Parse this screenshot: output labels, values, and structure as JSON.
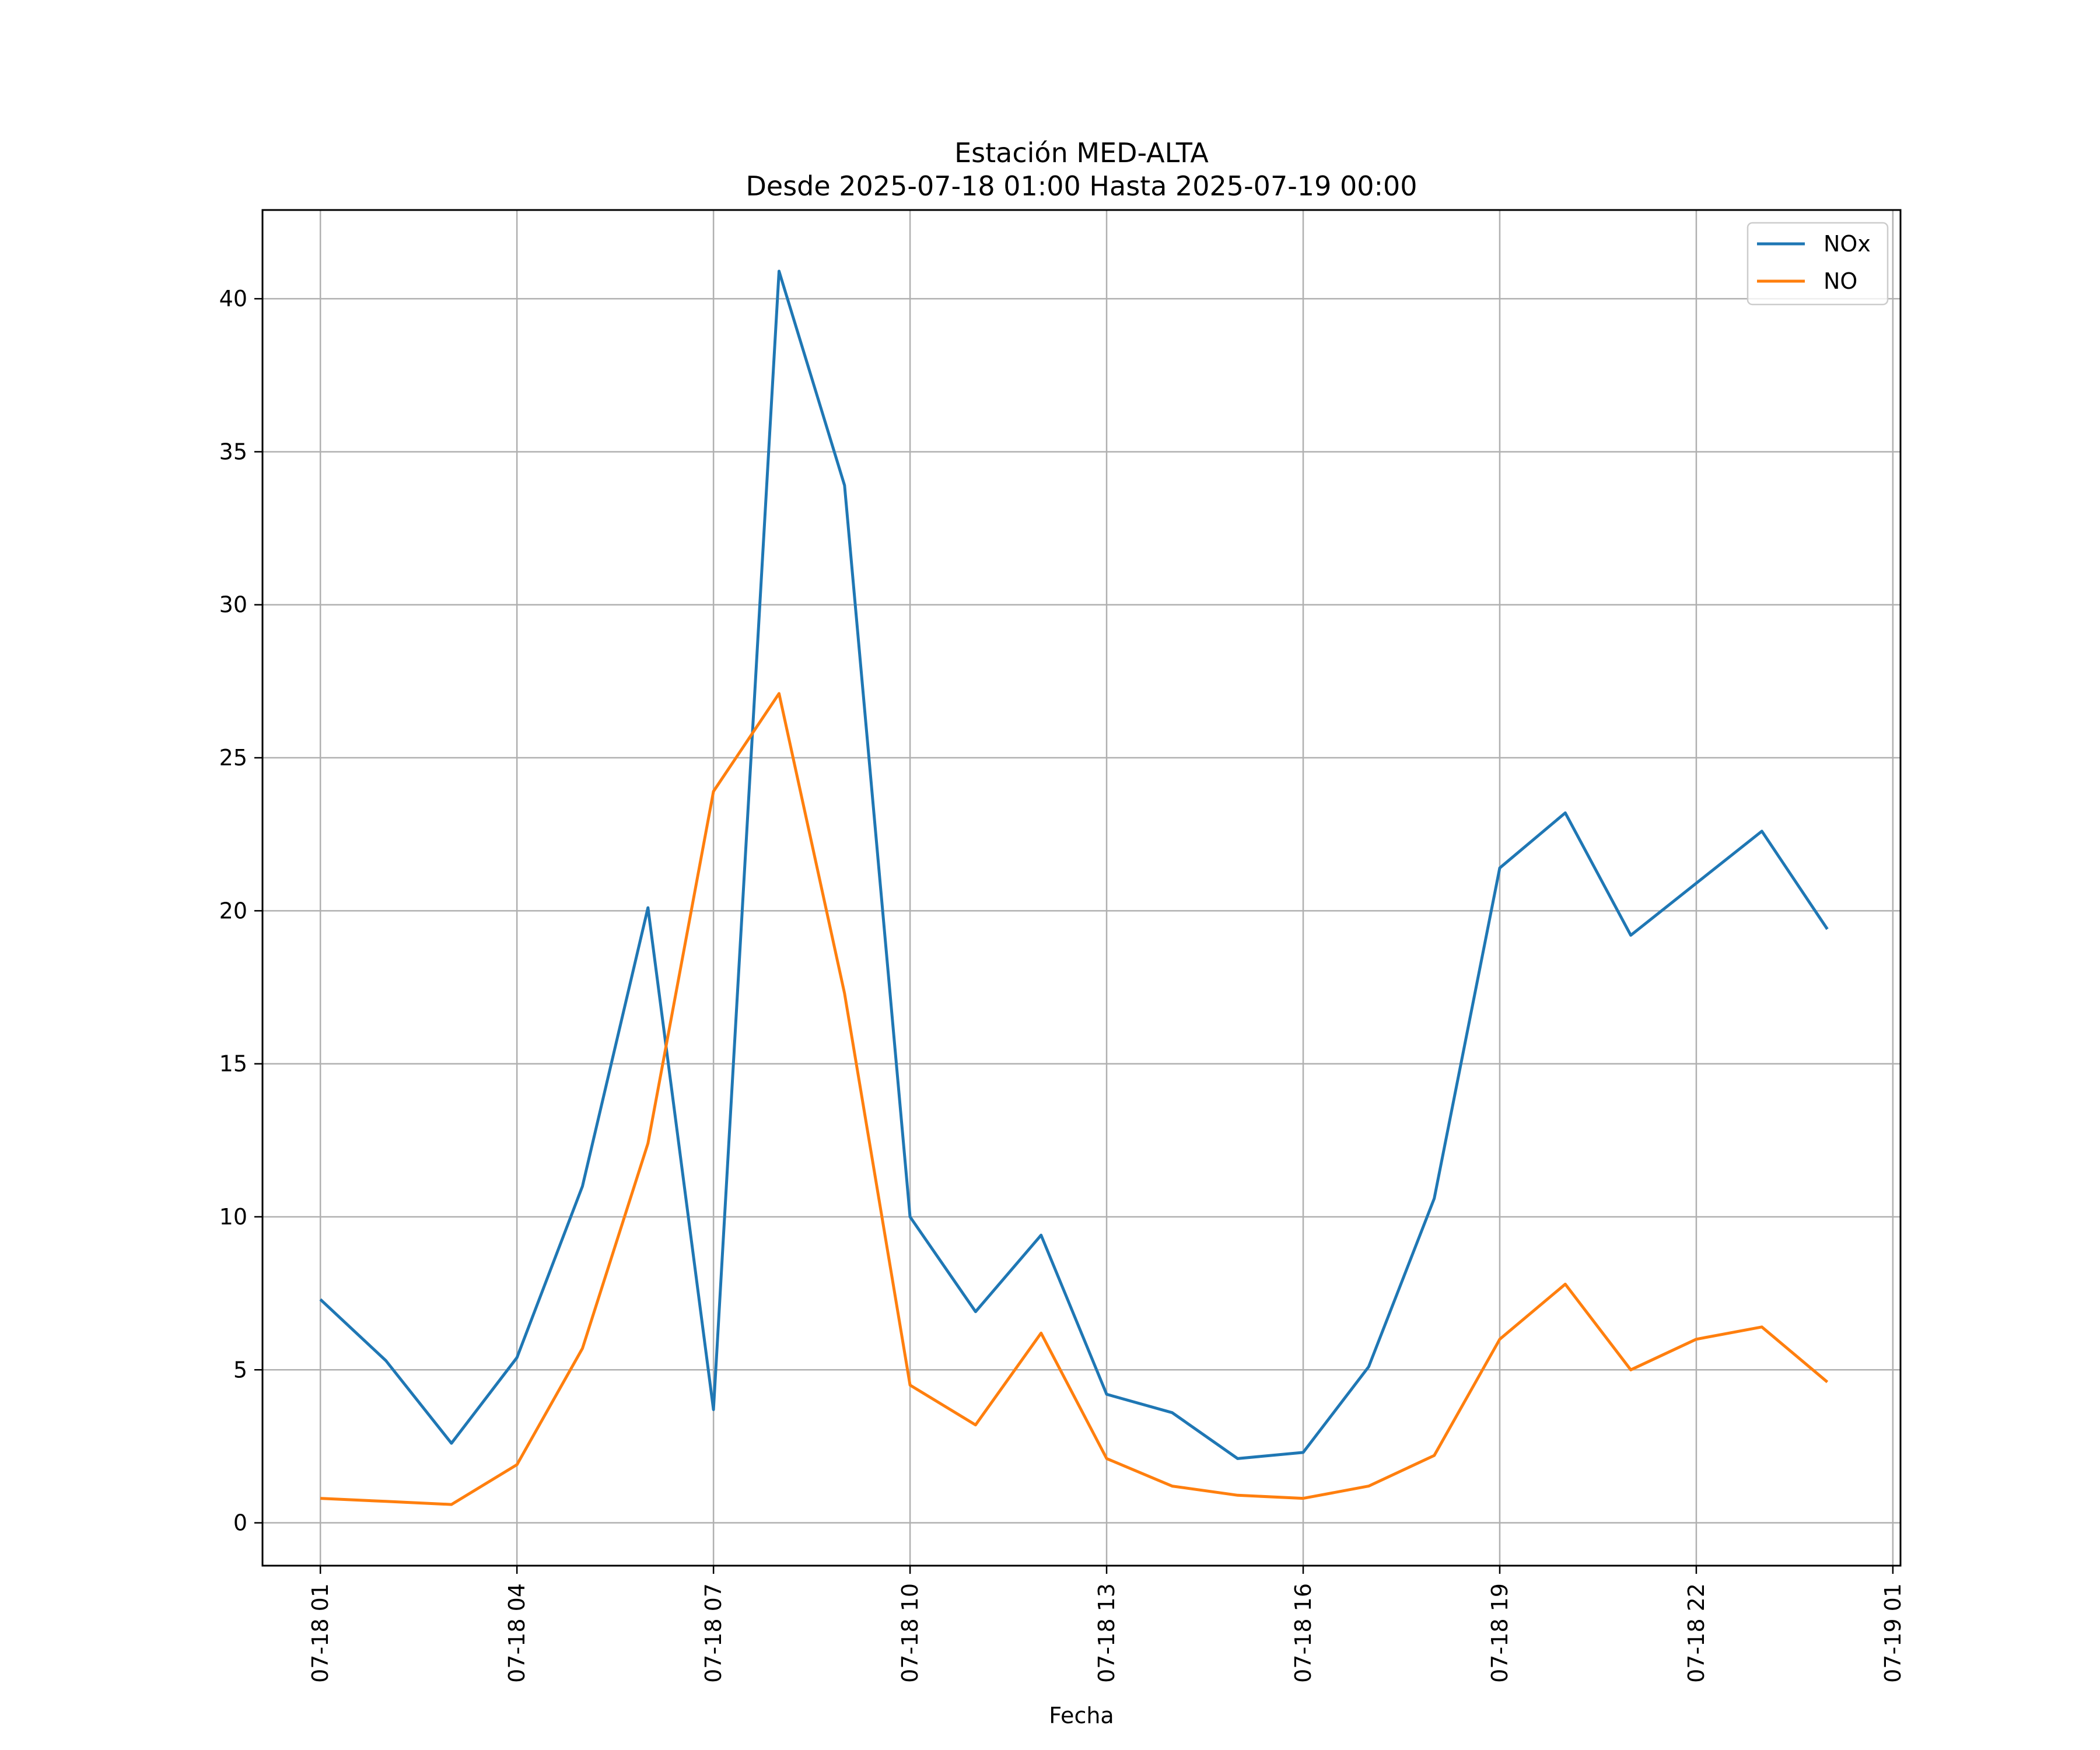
{
  "chart_data": {
    "type": "line",
    "title": "Estación MED-ALTA",
    "subtitle": "Desde 2025-07-18 01:00 Hasta 2025-07-19 00:00",
    "xlabel": "Fecha",
    "ylabel": "",
    "x": [
      "07-18 01:00",
      "07-18 02:00",
      "07-18 03:00",
      "07-18 04:00",
      "07-18 05:00",
      "07-18 06:00",
      "07-18 07:00",
      "07-18 08:00",
      "07-18 09:00",
      "07-18 10:00",
      "07-18 11:00",
      "07-18 12:00",
      "07-18 13:00",
      "07-18 14:00",
      "07-18 15:00",
      "07-18 16:00",
      "07-18 17:00",
      "07-18 18:00",
      "07-18 19:00",
      "07-18 20:00",
      "07-18 21:00",
      "07-18 22:00",
      "07-18 23:00",
      "07-19 00:00"
    ],
    "series": [
      {
        "name": "NOx",
        "color": "#1f77b4",
        "values": [
          7.3,
          5.3,
          2.6,
          5.4,
          11.0,
          20.1,
          3.7,
          40.9,
          33.9,
          10.0,
          6.9,
          9.4,
          4.2,
          3.6,
          2.1,
          2.3,
          5.1,
          10.6,
          21.4,
          23.2,
          19.2,
          20.9,
          22.6,
          19.4
        ]
      },
      {
        "name": "NO",
        "color": "#ff7f0e",
        "values": [
          0.8,
          0.7,
          0.6,
          1.9,
          5.7,
          12.4,
          23.9,
          27.1,
          17.3,
          4.5,
          3.2,
          6.2,
          2.1,
          1.2,
          0.9,
          0.8,
          1.2,
          2.2,
          6.0,
          7.8,
          5.0,
          6.0,
          6.4,
          4.6
        ]
      }
    ],
    "x_ticks": [
      "07-18 01",
      "07-18 04",
      "07-18 07",
      "07-18 10",
      "07-18 13",
      "07-18 16",
      "07-18 19",
      "07-18 22",
      "07-19 01"
    ],
    "y_ticks": [
      "0",
      "5",
      "10",
      "15",
      "20",
      "25",
      "30",
      "35",
      "40"
    ],
    "xlim": [
      "07-18 00:07",
      "07-19 01:07"
    ],
    "ylim": [
      -1.4,
      42.9
    ],
    "grid": true,
    "legend_position": "top-right"
  }
}
